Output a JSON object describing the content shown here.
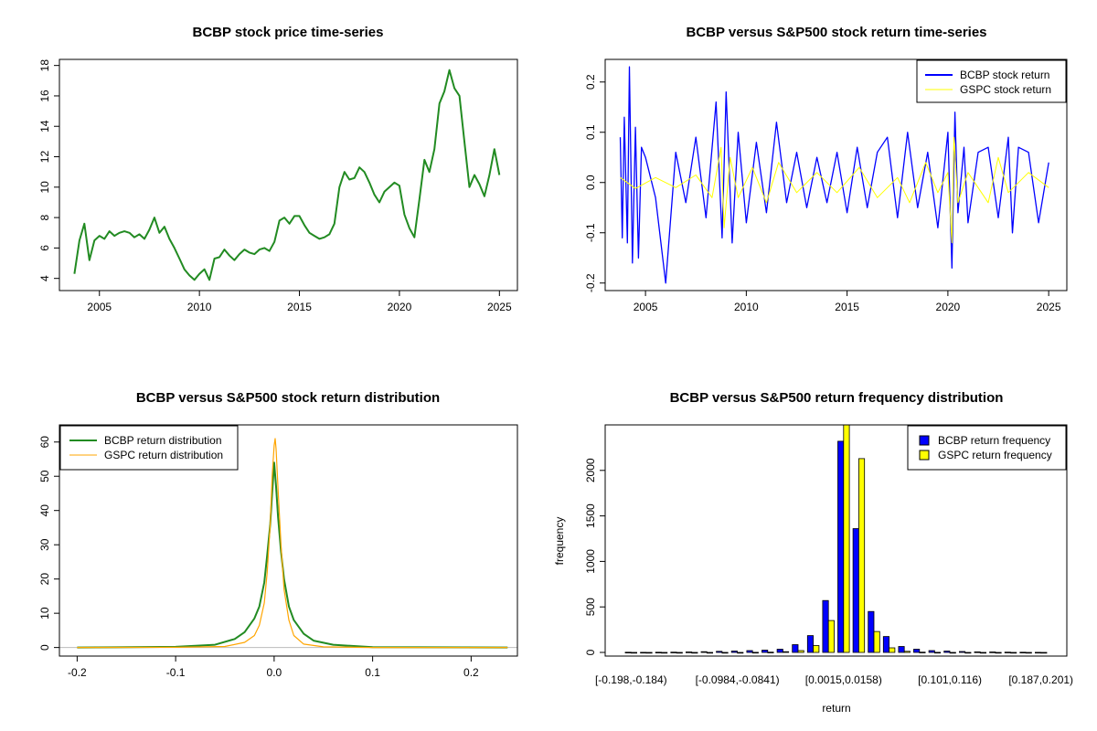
{
  "colors": {
    "bcbp_price": "#228B22",
    "bcbp_return": "#0000FF",
    "gspc_return": "#FFFF00",
    "bcbp_density": "#228B22",
    "gspc_density": "#FFA500",
    "bar_bcbp": "#0000FF",
    "bar_gspc": "#FFFF00"
  },
  "chart_data": [
    {
      "id": "price",
      "type": "line",
      "title": "BCBP stock price time-series",
      "xlabel": "",
      "ylabel": "",
      "xlim": [
        2003.0,
        2025.9
      ],
      "ylim": [
        3.2,
        18.4
      ],
      "xticks": [
        2005,
        2010,
        2015,
        2020,
        2025
      ],
      "xtick_labels": [
        "2005",
        "2010",
        "2015",
        "2020",
        "2025"
      ],
      "yticks": [
        4,
        6,
        8,
        10,
        12,
        14,
        16,
        18
      ],
      "ytick_labels": [
        "4",
        "6",
        "8",
        "10",
        "12",
        "14",
        "16",
        "18"
      ],
      "series": [
        {
          "name": "BCBP price",
          "x": [
            2003.75,
            2004.0,
            2004.25,
            2004.5,
            2004.75,
            2005.0,
            2005.25,
            2005.5,
            2005.75,
            2006.0,
            2006.25,
            2006.5,
            2006.75,
            2007.0,
            2007.25,
            2007.5,
            2007.75,
            2008.0,
            2008.25,
            2008.5,
            2008.75,
            2009.0,
            2009.25,
            2009.5,
            2009.75,
            2010.0,
            2010.25,
            2010.5,
            2010.75,
            2011.0,
            2011.25,
            2011.5,
            2011.75,
            2012.0,
            2012.25,
            2012.5,
            2012.75,
            2013.0,
            2013.25,
            2013.5,
            2013.75,
            2014.0,
            2014.25,
            2014.5,
            2014.75,
            2015.0,
            2015.25,
            2015.5,
            2015.75,
            2016.0,
            2016.25,
            2016.5,
            2016.75,
            2017.0,
            2017.25,
            2017.5,
            2017.75,
            2018.0,
            2018.25,
            2018.5,
            2018.75,
            2019.0,
            2019.25,
            2019.5,
            2019.75,
            2020.0,
            2020.25,
            2020.5,
            2020.75,
            2021.0,
            2021.25,
            2021.5,
            2021.75,
            2022.0,
            2022.25,
            2022.5,
            2022.75,
            2023.0,
            2023.25,
            2023.5,
            2023.75,
            2024.0,
            2024.25,
            2024.5,
            2024.75,
            2025.0
          ],
          "y": [
            4.3,
            6.5,
            7.6,
            5.2,
            6.5,
            6.8,
            6.6,
            7.1,
            6.8,
            7.0,
            7.1,
            7.0,
            6.7,
            6.9,
            6.6,
            7.2,
            8.0,
            7.0,
            7.4,
            6.6,
            6.0,
            5.3,
            4.6,
            4.2,
            3.9,
            4.3,
            4.6,
            3.9,
            5.3,
            5.4,
            5.9,
            5.5,
            5.2,
            5.6,
            5.9,
            5.7,
            5.6,
            5.9,
            6.0,
            5.8,
            6.4,
            7.8,
            8.0,
            7.6,
            8.1,
            8.1,
            7.5,
            7.0,
            6.8,
            6.6,
            6.7,
            6.9,
            7.6,
            10.0,
            11.0,
            10.5,
            10.6,
            11.3,
            11.0,
            10.3,
            9.5,
            9.0,
            9.7,
            10.0,
            10.3,
            10.1,
            8.2,
            7.3,
            6.7,
            9.2,
            11.8,
            11.0,
            12.5,
            15.5,
            16.3,
            17.7,
            16.5,
            16.0,
            13.0,
            10.0,
            10.8,
            10.2,
            9.4,
            10.8,
            12.5,
            10.8
          ]
        }
      ]
    },
    {
      "id": "returns",
      "type": "line",
      "title": "BCBP versus S&P500 stock return time-series",
      "xlabel": "",
      "ylabel": "",
      "xlim": [
        2003.0,
        2025.9
      ],
      "ylim": [
        -0.215,
        0.245
      ],
      "xticks": [
        2005,
        2010,
        2015,
        2020,
        2025
      ],
      "xtick_labels": [
        "2005",
        "2010",
        "2015",
        "2020",
        "2025"
      ],
      "yticks": [
        -0.2,
        -0.1,
        0.0,
        0.1,
        0.2
      ],
      "ytick_labels": [
        "-0.2",
        "-0.1",
        "0.0",
        "0.1",
        "0.2"
      ],
      "legend": {
        "position": "top-right",
        "entries": [
          "BCBP stock return",
          "GSPC stock return"
        ]
      },
      "series": [
        {
          "name": "BCBP stock return",
          "x": [
            2003.75,
            2003.85,
            2003.95,
            2004.1,
            2004.2,
            2004.35,
            2004.5,
            2004.65,
            2004.8,
            2005.0,
            2005.5,
            2006.0,
            2006.5,
            2007.0,
            2007.5,
            2008.0,
            2008.5,
            2008.8,
            2009.0,
            2009.3,
            2009.6,
            2010.0,
            2010.5,
            2011.0,
            2011.5,
            2012.0,
            2012.5,
            2013.0,
            2013.5,
            2014.0,
            2014.5,
            2015.0,
            2015.5,
            2016.0,
            2016.5,
            2017.0,
            2017.5,
            2018.0,
            2018.5,
            2019.0,
            2019.5,
            2020.0,
            2020.2,
            2020.35,
            2020.5,
            2020.8,
            2021.0,
            2021.5,
            2022.0,
            2022.5,
            2023.0,
            2023.2,
            2023.5,
            2024.0,
            2024.5,
            2025.0
          ],
          "y": [
            0.09,
            -0.11,
            0.13,
            -0.12,
            0.23,
            -0.16,
            0.11,
            -0.15,
            0.07,
            0.05,
            -0.03,
            -0.2,
            0.06,
            -0.04,
            0.09,
            -0.07,
            0.16,
            -0.11,
            0.18,
            -0.12,
            0.1,
            -0.08,
            0.08,
            -0.06,
            0.12,
            -0.04,
            0.06,
            -0.05,
            0.05,
            -0.04,
            0.06,
            -0.06,
            0.07,
            -0.05,
            0.06,
            0.09,
            -0.07,
            0.1,
            -0.05,
            0.06,
            -0.09,
            0.1,
            -0.17,
            0.14,
            -0.06,
            0.07,
            -0.08,
            0.06,
            0.07,
            -0.07,
            0.09,
            -0.1,
            0.07,
            0.06,
            -0.08,
            0.04
          ]
        },
        {
          "name": "GSPC stock return",
          "x": [
            2003.75,
            2004.5,
            2005.5,
            2006.5,
            2007.5,
            2008.3,
            2008.75,
            2008.9,
            2009.2,
            2009.6,
            2010.3,
            2011.0,
            2011.6,
            2012.5,
            2013.5,
            2014.5,
            2015.6,
            2016.5,
            2017.5,
            2018.1,
            2018.9,
            2019.5,
            2020.0,
            2020.2,
            2020.3,
            2020.5,
            2021.0,
            2022.0,
            2022.5,
            2023.0,
            2024.0,
            2025.0
          ],
          "y": [
            0.01,
            -0.012,
            0.01,
            -0.01,
            0.015,
            -0.03,
            0.07,
            -0.09,
            0.05,
            -0.03,
            0.03,
            -0.04,
            0.04,
            -0.02,
            0.02,
            -0.02,
            0.03,
            -0.03,
            0.01,
            -0.04,
            0.04,
            -0.02,
            0.02,
            -0.12,
            0.09,
            -0.04,
            0.02,
            -0.04,
            0.05,
            -0.02,
            0.02,
            -0.01
          ]
        }
      ]
    },
    {
      "id": "density",
      "type": "line",
      "title": "BCBP versus S&P500 stock return distribution",
      "xlabel": "",
      "ylabel": "",
      "xlim": [
        -0.218,
        0.247
      ],
      "ylim": [
        -2.5,
        65
      ],
      "xticks": [
        -0.2,
        -0.1,
        0.0,
        0.1,
        0.2
      ],
      "xtick_labels": [
        "-0.2",
        "-0.1",
        "0.0",
        "0.1",
        "0.2"
      ],
      "yticks": [
        0,
        10,
        20,
        30,
        40,
        50,
        60
      ],
      "ytick_labels": [
        "0",
        "10",
        "20",
        "30",
        "40",
        "50",
        "60"
      ],
      "legend": {
        "position": "top-left",
        "entries": [
          "BCBP return distribution",
          "GSPC return distribution"
        ]
      },
      "series": [
        {
          "name": "BCBP return distribution",
          "x": [
            -0.2,
            -0.1,
            -0.06,
            -0.04,
            -0.03,
            -0.02,
            -0.015,
            -0.01,
            -0.007,
            -0.004,
            -0.002,
            0.0,
            0.002,
            0.004,
            0.007,
            0.01,
            0.015,
            0.02,
            0.03,
            0.04,
            0.06,
            0.1,
            0.237
          ],
          "y": [
            0,
            0.2,
            0.8,
            2.5,
            4.5,
            8.5,
            12,
            19,
            27,
            36,
            45,
            54,
            47,
            38,
            28,
            20,
            12,
            8,
            4,
            2,
            0.8,
            0.1,
            0
          ]
        },
        {
          "name": "GSPC return distribution",
          "x": [
            -0.2,
            -0.1,
            -0.05,
            -0.03,
            -0.02,
            -0.015,
            -0.01,
            -0.007,
            -0.004,
            -0.002,
            0.0,
            0.001,
            0.002,
            0.004,
            0.007,
            0.01,
            0.015,
            0.02,
            0.03,
            0.05,
            0.1,
            0.237
          ],
          "y": [
            0,
            0.05,
            0.3,
            1.5,
            3.5,
            6.5,
            13,
            22,
            36,
            50,
            59,
            61,
            58,
            46,
            30,
            17,
            8,
            3.5,
            1,
            0.2,
            0.02,
            0
          ]
        }
      ]
    },
    {
      "id": "hist",
      "type": "bar",
      "title": "BCBP versus S&P500 return frequency distribution",
      "xlabel": "return",
      "ylabel": "frequency",
      "ylim": [
        0,
        2500
      ],
      "yticks": [
        0,
        500,
        1000,
        1500,
        2000
      ],
      "ytick_labels": [
        "0",
        "500",
        "1000",
        "1500",
        "2000"
      ],
      "xtick_labels": [
        "[-0.198,-0.184)",
        "[-0.0984,-0.0841)",
        "[0.0015,0.0158)",
        "[0.101,0.116)",
        "[0.187,0.201)"
      ],
      "xtick_bins": [
        0,
        7,
        14,
        21,
        27
      ],
      "legend": {
        "position": "top-right",
        "entries": [
          "BCBP return frequency",
          "GSPC return frequency"
        ]
      },
      "series": [
        {
          "name": "BCBP return frequency",
          "values": [
            2,
            1,
            2,
            3,
            5,
            8,
            12,
            15,
            20,
            25,
            35,
            85,
            185,
            570,
            2320,
            1360,
            450,
            175,
            65,
            35,
            20,
            15,
            10,
            6,
            5,
            3,
            2,
            1
          ]
        },
        {
          "name": "GSPC return frequency",
          "values": [
            0,
            0,
            0,
            0,
            0,
            0,
            0,
            0,
            1,
            3,
            8,
            20,
            75,
            350,
            2570,
            2130,
            230,
            50,
            12,
            3,
            1,
            0,
            0,
            0,
            0,
            0,
            0,
            0
          ]
        }
      ]
    }
  ]
}
